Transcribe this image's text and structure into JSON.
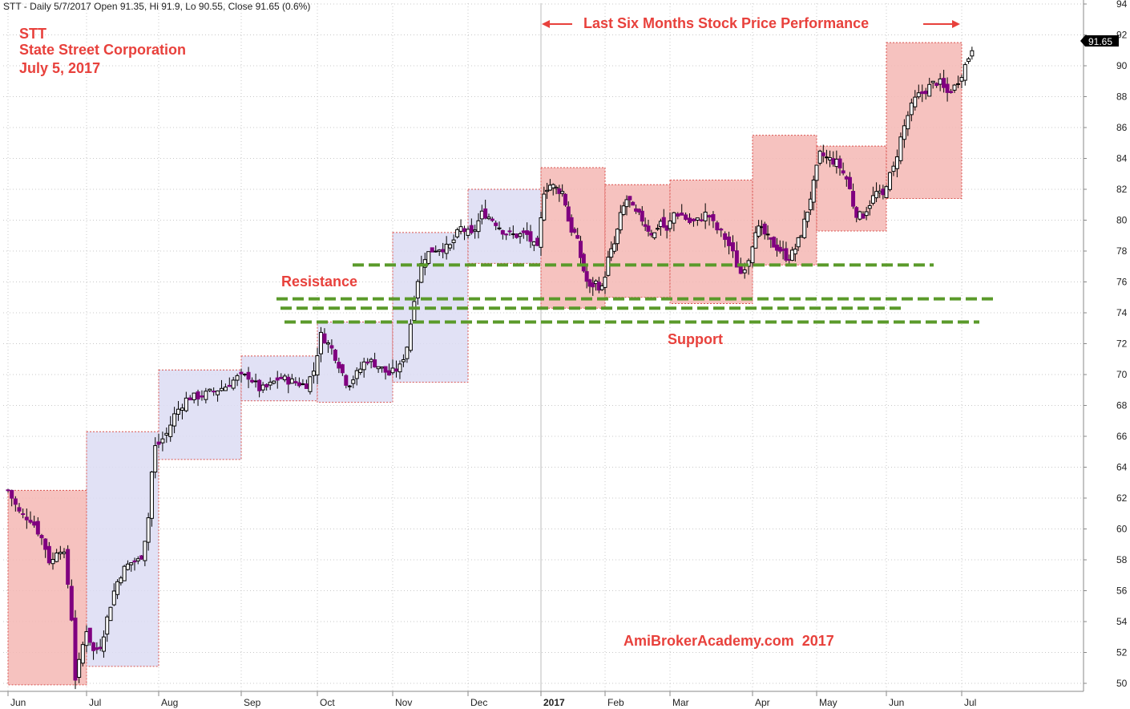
{
  "header": {
    "text": "STT - Daily 5/7/2017 Open 91.35, Hi 91.9, Lo 90.55, Close 91.65 (0.6%)"
  },
  "title_block": {
    "line1": "STT",
    "line2": "State Street Corporation",
    "line3": "July 5, 2017"
  },
  "banner": {
    "text": "Last Six Months Stock Price Performance"
  },
  "annotations": {
    "resistance": "Resistance",
    "support": "Support",
    "watermark": "AmiBrokerAcademy.com  2017"
  },
  "last_price": "91.65",
  "colors": {
    "up_candle": "#ffffff",
    "down_candle": "#800080",
    "pink_box": "#f5b7b4",
    "blue_box": "#dcdcf3",
    "box_border": "#d9534f",
    "dash_line": "#5a9a2a",
    "text_red": "#e8413c"
  },
  "chart_data": {
    "type": "candlestick",
    "symbol": "STT",
    "ylim": [
      49.5,
      95
    ],
    "y_ticks": [
      50,
      52,
      54,
      56,
      58,
      60,
      62,
      64,
      66,
      68,
      70,
      72,
      74,
      76,
      78,
      80,
      82,
      84,
      86,
      88,
      90,
      92,
      94
    ],
    "x_labels": [
      "Jun",
      "Jul",
      "Aug",
      "Sep",
      "Oct",
      "Nov",
      "Dec",
      "2017",
      "Feb",
      "Mar",
      "Apr",
      "May",
      "Jun",
      "Jul"
    ],
    "x_label_months": [
      0,
      1,
      2,
      3,
      4,
      5,
      6,
      7,
      8,
      9,
      10,
      11,
      12,
      13
    ],
    "monthly_ranges": [
      {
        "month": 0,
        "high": 62.5,
        "low": 49.9,
        "color": "pink"
      },
      {
        "month": 1,
        "high": 66.3,
        "low": 51.1,
        "color": "blue"
      },
      {
        "month": 2,
        "high": 70.3,
        "low": 64.5,
        "color": "blue"
      },
      {
        "month": 3,
        "high": 71.2,
        "low": 68.3,
        "color": "blue"
      },
      {
        "month": 4,
        "high": 73.4,
        "low": 68.2,
        "color": "blue"
      },
      {
        "month": 5,
        "high": 79.2,
        "low": 69.5,
        "color": "blue"
      },
      {
        "month": 6,
        "high": 82.0,
        "low": 77.2,
        "color": "blue"
      },
      {
        "month": 7,
        "high": 83.4,
        "low": 74.3,
        "color": "pink"
      },
      {
        "month": 8,
        "high": 82.3,
        "low": 75.0,
        "color": "pink"
      },
      {
        "month": 9,
        "high": 82.6,
        "low": 74.6,
        "color": "pink"
      },
      {
        "month": 10,
        "high": 85.5,
        "low": 77.1,
        "color": "pink"
      },
      {
        "month": 11,
        "high": 84.8,
        "low": 79.3,
        "color": "pink"
      },
      {
        "month": 12,
        "high": 91.5,
        "low": 81.4,
        "color": "pink"
      }
    ],
    "horizontal_lines": [
      77.1,
      74.9,
      74.3,
      73.4
    ],
    "candle_path": [
      [
        0,
        62.5
      ],
      [
        0.15,
        61.0
      ],
      [
        0.3,
        60.6
      ],
      [
        0.45,
        59.2
      ],
      [
        0.55,
        57.5
      ],
      [
        0.6,
        58.6
      ],
      [
        0.7,
        58.8
      ],
      [
        0.8,
        55.0
      ],
      [
        0.86,
        50.1
      ],
      [
        0.93,
        52.0
      ],
      [
        1.0,
        53.5
      ],
      [
        1.1,
        52.0
      ],
      [
        1.2,
        52.5
      ],
      [
        1.3,
        54.5
      ],
      [
        1.4,
        56.3
      ],
      [
        1.5,
        57.3
      ],
      [
        1.6,
        57.8
      ],
      [
        1.75,
        58.0
      ],
      [
        1.85,
        60.3
      ],
      [
        1.9,
        63.5
      ],
      [
        1.95,
        65.3
      ],
      [
        2.0,
        65.5
      ],
      [
        2.1,
        66.2
      ],
      [
        2.2,
        67.5
      ],
      [
        2.35,
        68.5
      ],
      [
        2.5,
        68.6
      ],
      [
        2.65,
        68.9
      ],
      [
        2.8,
        69.2
      ],
      [
        2.95,
        69.8
      ],
      [
        3.1,
        69.9
      ],
      [
        3.25,
        69.0
      ],
      [
        3.35,
        69.2
      ],
      [
        3.5,
        69.8
      ],
      [
        3.7,
        69.5
      ],
      [
        3.85,
        69.3
      ],
      [
        3.95,
        70.2
      ],
      [
        4.05,
        72.6
      ],
      [
        4.2,
        71.6
      ],
      [
        4.3,
        70.5
      ],
      [
        4.4,
        69.3
      ],
      [
        4.55,
        70.2
      ],
      [
        4.65,
        71.0
      ],
      [
        4.8,
        70.6
      ],
      [
        4.95,
        70.0
      ],
      [
        5.1,
        70.5
      ],
      [
        5.2,
        72.0
      ],
      [
        5.3,
        75.5
      ],
      [
        5.4,
        77.5
      ],
      [
        5.5,
        78.0
      ],
      [
        5.6,
        78.2
      ],
      [
        5.75,
        78.2
      ],
      [
        5.9,
        79.5
      ],
      [
        6.05,
        79.0
      ],
      [
        6.2,
        80.5
      ],
      [
        6.35,
        80.0
      ],
      [
        6.5,
        79.2
      ],
      [
        6.65,
        79.0
      ],
      [
        6.8,
        79.1
      ],
      [
        6.95,
        78.0
      ],
      [
        7.05,
        82.0
      ],
      [
        7.15,
        82.3
      ],
      [
        7.25,
        82.0
      ],
      [
        7.35,
        81.8
      ],
      [
        7.45,
        79.5
      ],
      [
        7.55,
        79.0
      ],
      [
        7.65,
        77.0
      ],
      [
        7.75,
        75.5
      ],
      [
        7.85,
        76.0
      ],
      [
        7.95,
        75.5
      ],
      [
        8.05,
        77.5
      ],
      [
        8.15,
        78.5
      ],
      [
        8.25,
        80.5
      ],
      [
        8.35,
        81.5
      ],
      [
        8.45,
        80.5
      ],
      [
        8.55,
        80.2
      ],
      [
        8.65,
        79.5
      ],
      [
        8.75,
        79.0
      ],
      [
        8.85,
        80.0
      ],
      [
        8.95,
        79.2
      ],
      [
        9.05,
        80.5
      ],
      [
        9.15,
        80.3
      ],
      [
        9.25,
        79.8
      ],
      [
        9.35,
        80.0
      ],
      [
        9.45,
        80.5
      ],
      [
        9.55,
        79.5
      ],
      [
        9.65,
        79.0
      ],
      [
        9.75,
        78.0
      ],
      [
        9.85,
        76.5
      ],
      [
        9.95,
        77.5
      ],
      [
        10.05,
        79.5
      ],
      [
        10.15,
        79.3
      ],
      [
        10.3,
        78.5
      ],
      [
        10.45,
        78.0
      ],
      [
        10.55,
        77.5
      ],
      [
        10.65,
        78.0
      ],
      [
        10.75,
        79.0
      ],
      [
        10.85,
        80.5
      ],
      [
        10.95,
        82.3
      ],
      [
        11.05,
        84.3
      ],
      [
        11.15,
        84.0
      ],
      [
        11.3,
        83.7
      ],
      [
        11.45,
        82.5
      ],
      [
        11.55,
        80.5
      ],
      [
        11.65,
        80.2
      ],
      [
        11.75,
        81.0
      ],
      [
        11.85,
        81.8
      ],
      [
        11.95,
        81.5
      ],
      [
        12.0,
        82.4
      ],
      [
        12.1,
        83.4
      ],
      [
        12.2,
        85.5
      ],
      [
        12.3,
        87.0
      ],
      [
        12.4,
        88.0
      ],
      [
        12.5,
        88.3
      ],
      [
        12.6,
        88.8
      ],
      [
        12.7,
        89.0
      ],
      [
        12.8,
        88.2
      ],
      [
        12.9,
        88.6
      ],
      [
        13.0,
        89.5
      ],
      [
        13.1,
        90.6
      ],
      [
        13.18,
        91.65
      ]
    ]
  }
}
